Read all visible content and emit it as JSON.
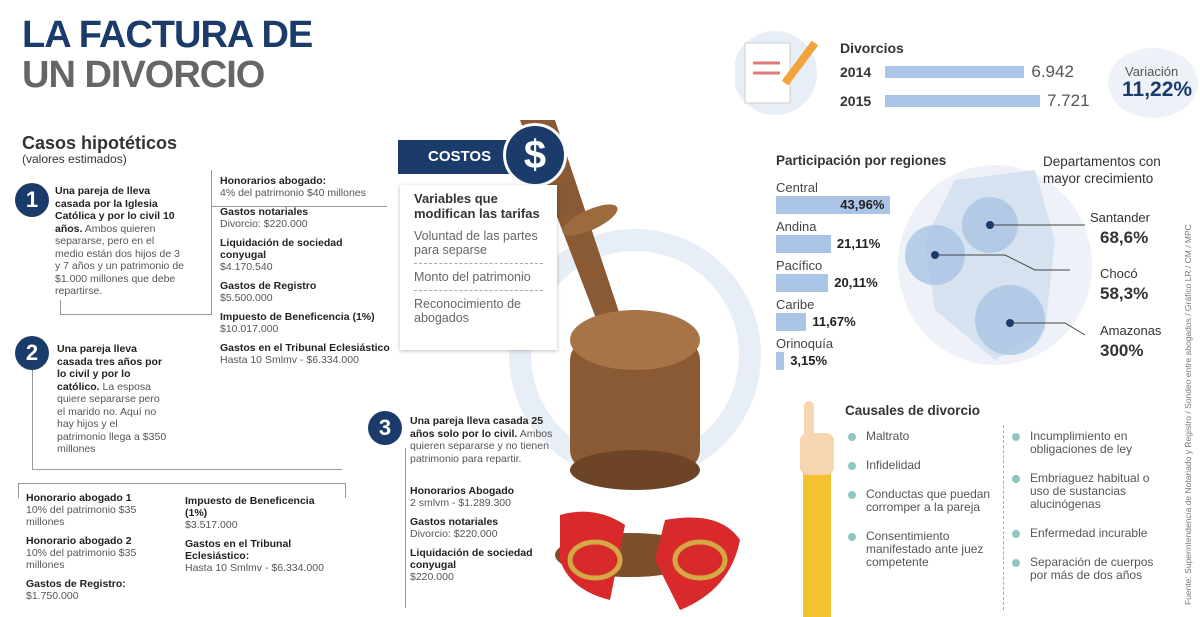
{
  "title": [
    "LA FACTURA DE",
    "UN DIVORCIO"
  ],
  "cases": {
    "title": "Casos hipotéticos",
    "subtitle": "(valores estimados)",
    "items": [
      {
        "number": "1",
        "bold": "Una pareja de lleva casada por la Iglesia Católica y por lo civil 10 años.",
        "text": "Ambos quieren separarse, pero en el medio están dos hijos de 3 y 7 años y un patrimonio de $1.000 millones que debe repartirse.",
        "costs": [
          {
            "label": "Honorarios abogado:",
            "value": "4% del patrimonio $40 millones"
          },
          {
            "label": "Gastos notariales",
            "value": "Divorcio: $220.000"
          },
          {
            "label": "Liquidación de sociedad conyugal",
            "value": "$4.170.540"
          },
          {
            "label": "Gastos de Registro",
            "value": "$5.500.000"
          },
          {
            "label": "Impuesto de Beneficencia (1%)",
            "value": "$10.017.000"
          },
          {
            "label": "Gastos en el Tribunal Eclesiástico",
            "value": "Hasta 10 Smlmv  - $6.334.000"
          }
        ]
      },
      {
        "number": "2",
        "bold": "Una pareja lleva casada tres años por lo civil y por lo católico.",
        "text": "La esposa quiere separarse pero el marido no. Aquí no hay hijos y el patrimonio llega a $350 millones",
        "costs": [
          {
            "label": "Honorario abogado 1",
            "value": "10% del patrimonio $35 millones"
          },
          {
            "label": "Honorario abogado 2",
            "value": "10% del patrimonio $35 millones"
          },
          {
            "label": "Gastos de Registro:",
            "value": "$1.750.000"
          },
          {
            "label": "Impuesto de Beneficencia (1%)",
            "value": "$3.517.000"
          },
          {
            "label": "Gastos en el Tribunal Eclesiástico:",
            "value": "Hasta 10 Smlmv  - $6.334.000"
          }
        ]
      },
      {
        "number": "3",
        "bold": "Una pareja  lleva casada 25 años solo por lo civil.",
        "text": "Ambos quieren separarse y no tienen patrimonio para repartir.",
        "costs": [
          {
            "label": "Honorarios Abogado",
            "value": "2 smlvm - $1.289.300"
          },
          {
            "label": "Gastos notariales",
            "value": "Divorcio: $220.000"
          },
          {
            "label": "Liquidación de sociedad conyugal",
            "value": "$220.000"
          }
        ]
      }
    ]
  },
  "costs_box": {
    "header": "COSTOS",
    "icon": "$",
    "title": "Variables que modifican las tarifas",
    "items": [
      "Voluntad de las partes para separse",
      "Monto del patrimonio",
      "Reconocimiento de abogados"
    ]
  },
  "divorces": {
    "title": "Divorcios",
    "categories": [
      "2014",
      "2015"
    ],
    "values": [
      6942,
      7721
    ],
    "value_labels": [
      "6.942",
      "7.721"
    ],
    "change_label": "Variación",
    "change": "11,22%"
  },
  "regions": {
    "title": "Participación por regiones",
    "categories": [
      "Central",
      "Andina",
      "Pacífico",
      "Caribe",
      "Orinoquía"
    ],
    "values": [
      43.96,
      21.11,
      20.11,
      11.67,
      3.15
    ],
    "value_labels": [
      "43,96%",
      "21,11%",
      "20,11%",
      "11,67%",
      "3,15%"
    ]
  },
  "departments": {
    "title": "Departamentos con mayor crecimiento",
    "items": [
      {
        "name": "Santander",
        "value": "68,6%"
      },
      {
        "name": "Chocó",
        "value": "58,3%"
      },
      {
        "name": "Amazonas",
        "value": "300%"
      }
    ]
  },
  "causes": {
    "title": "Causales de divorcio",
    "left": [
      "Maltrato",
      "Infidelidad",
      "Conductas que puedan corromper a la pareja",
      "Consentimiento manifestado ante juez competente"
    ],
    "right": [
      "Incumplimiento en obligaciones de ley",
      "Embriaguez habitual o uso de sustancias alucinógenas",
      "Enfermedad incurable",
      "Separación de cuerpos por más de dos años"
    ]
  },
  "source": "Fuente: Superintendencia de Notariado y Registro / Sondeo entre abogados / Gráfico LR / CM / MPC"
}
